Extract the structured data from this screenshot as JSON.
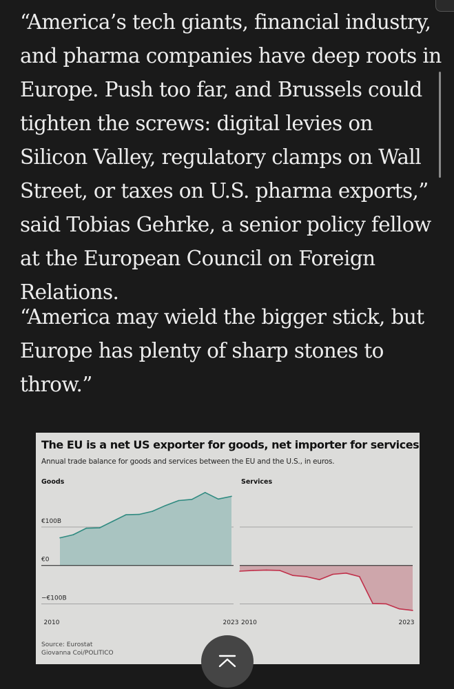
{
  "article": {
    "paragraph_1": "“America’s tech giants, financial industry, and pharma companies have deep roots in Europe. Push too far, and Brussels could tighten the screws: digital levies on Silicon Valley, regulatory clamps on Wall Street, or taxes on U.S. pharma exports,” said Tobias Gehrke, a senior policy fellow at the European Council on Foreign Relations.",
    "paragraph_2": "“America may wield the bigger stick, but Europe has plenty of sharp stones to throw.”"
  },
  "figure": {
    "title": "The EU is a net US exporter for goods, net importer for services",
    "subtitle": "Annual trade balance for goods and services between the EU and the U.S., in euros.",
    "source_line": "Source: Eurostat",
    "credit_line": "Giovanna Coi/POLITICO"
  },
  "chart_data": {
    "type": "area",
    "subtitle": "Annual trade balance for goods and services between the EU and the U.S., in euros.",
    "y_unit": "EUR billions",
    "ylim": [
      -110,
      195
    ],
    "y_ticks": [
      {
        "value": 100,
        "label": "€100B"
      },
      {
        "value": 0,
        "label": "€0"
      },
      {
        "value": -100,
        "label": "−€100B"
      }
    ],
    "x": [
      2010,
      2011,
      2012,
      2013,
      2014,
      2015,
      2016,
      2017,
      2018,
      2019,
      2020,
      2021,
      2022,
      2023
    ],
    "x_tick_labels": [
      "2010",
      "2023"
    ],
    "panels": [
      {
        "name": "Goods",
        "color": "#2f8a80",
        "fill": "#a9c4c1",
        "values": [
          72,
          80,
          97,
          98,
          115,
          132,
          133,
          141,
          156,
          169,
          172,
          190,
          173,
          180
        ]
      },
      {
        "name": "Services",
        "color": "#c0304a",
        "fill": "#cea6ab",
        "values": [
          -15,
          -13,
          -12,
          -13,
          -26,
          -29,
          -37,
          -23,
          -20,
          -29,
          -99,
          -100,
          -113,
          -117
        ]
      }
    ]
  },
  "ui": {
    "scroll_to_top_icon": "chevron-up-bar-icon"
  }
}
